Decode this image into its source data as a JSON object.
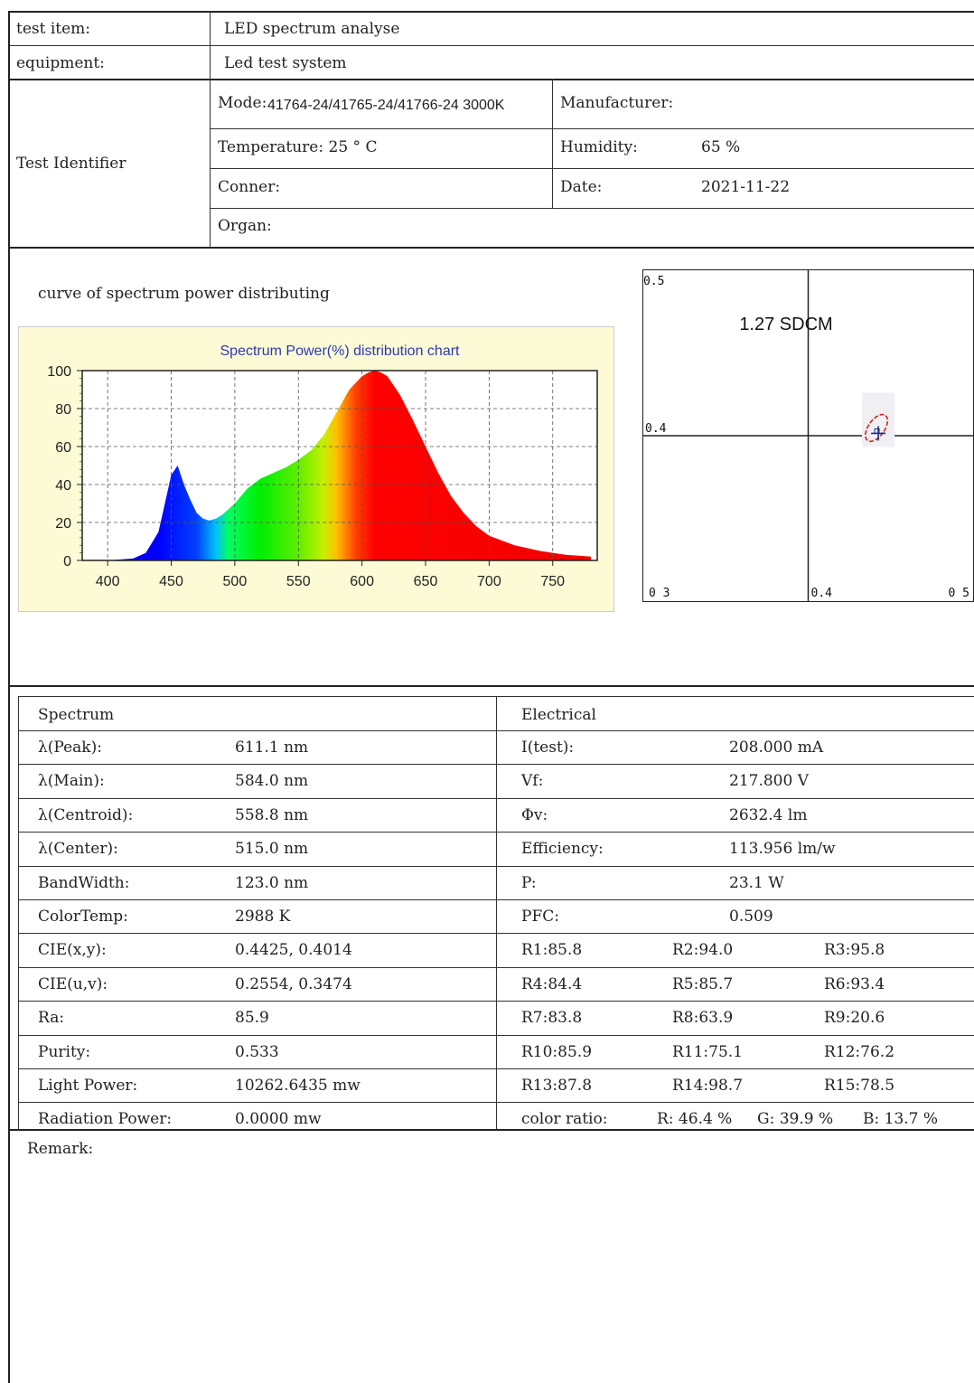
{
  "header": {
    "test_item_label": "test item:",
    "test_item_value": "LED spectrum analyse",
    "equipment_label": "equipment:",
    "equipment_value": "Led test system",
    "identifier_label": "Test Identifier",
    "mode_label": "Mode:",
    "mode_value": "41764-24/41765-24/41766-24 3000K",
    "manufacturer_label": "Manufacturer:",
    "manufacturer_value": "",
    "temperature": "Temperature: 25 ° C",
    "humidity_label": "Humidity:",
    "humidity_value": "65 %",
    "conner_label": "Conner:",
    "date_label": "Date:",
    "date_value": "2021-11-22",
    "organ_label": "Organ:"
  },
  "spectrum_section": {
    "caption": "curve of spectrum power distributing"
  },
  "chart_data": [
    {
      "type": "area",
      "title": "Spectrum Power(%) distribution chart",
      "xlabel": "",
      "ylabel": "",
      "xlim": [
        380,
        785
      ],
      "ylim": [
        0,
        100
      ],
      "xticks": [
        "400",
        "450",
        "500",
        "550",
        "600",
        "650",
        "700",
        "750"
      ],
      "yticks": [
        "0",
        "20",
        "40",
        "60",
        "80",
        "100"
      ],
      "grid": true,
      "x": [
        380,
        400,
        420,
        430,
        440,
        445,
        450,
        455,
        460,
        465,
        470,
        475,
        480,
        485,
        490,
        500,
        510,
        520,
        530,
        540,
        550,
        560,
        570,
        580,
        590,
        600,
        605,
        610,
        615,
        620,
        630,
        640,
        650,
        660,
        670,
        680,
        690,
        700,
        720,
        740,
        760,
        780
      ],
      "y": [
        0,
        0,
        1,
        4,
        15,
        30,
        45,
        50,
        40,
        32,
        25,
        22,
        21,
        22,
        24,
        30,
        38,
        43,
        46,
        49,
        53,
        58,
        66,
        78,
        90,
        97,
        99,
        100,
        99,
        97,
        87,
        74,
        60,
        46,
        34,
        25,
        18,
        13,
        8,
        5,
        3,
        2
      ]
    },
    {
      "type": "scatter",
      "title": "1.27 SDCM",
      "xlim": [
        0.3,
        0.5
      ],
      "ylim": [
        0.3,
        0.5
      ],
      "tick_labels": {
        "top_left": "0.5",
        "left_mid": "0.4",
        "bottom_left": "0 3",
        "bottom_mid": "0.4",
        "bottom_right": "0 5"
      },
      "point": {
        "x": 0.4425,
        "y": 0.4014
      },
      "ellipse_color": "#d22020",
      "marker_color": "#1a2a8a"
    }
  ],
  "spectrum": {
    "heading": "Spectrum",
    "rows": [
      {
        "label": "λ(Peak):",
        "value": "611.1 nm"
      },
      {
        "label": "λ(Main):",
        "value": "584.0 nm"
      },
      {
        "label": "λ(Centroid):",
        "value": "558.8 nm"
      },
      {
        "label": "λ(Center):",
        "value": "515.0 nm"
      },
      {
        "label": "BandWidth:",
        "value": "123.0 nm"
      },
      {
        "label": "ColorTemp:",
        "value": "2988 K"
      },
      {
        "label": "CIE(x,y):",
        "value": "0.4425, 0.4014"
      },
      {
        "label": "CIE(u,v):",
        "value": "0.2554, 0.3474"
      },
      {
        "label": "Ra:",
        "value": "85.9"
      },
      {
        "label": "Purity:",
        "value": "0.533"
      },
      {
        "label": "Light Power:",
        "value": "10262.6435 mw"
      },
      {
        "label": "Radiation Power:",
        "value": "0.0000 mw"
      }
    ]
  },
  "electrical": {
    "heading": "Electrical",
    "rows": [
      {
        "label": "I(test):",
        "value": "208.000 mA"
      },
      {
        "label": "Vf:",
        "value": "217.800 V"
      },
      {
        "label": "Φv:",
        "value": "2632.4 lm"
      },
      {
        "label": "Efficiency:",
        "value": "113.956 lm/w"
      },
      {
        "label": "P:",
        "value": "23.1 W"
      },
      {
        "label": "PFC:",
        "value": "0.509"
      }
    ],
    "r_rows": [
      [
        "R1:85.8",
        "R2:94.0",
        "R3:95.8"
      ],
      [
        "R4:84.4",
        "R5:85.7",
        "R6:93.4"
      ],
      [
        "R7:83.8",
        "R8:63.9",
        "R9:20.6"
      ],
      [
        "R10:85.9",
        "R11:75.1",
        "R12:76.2"
      ],
      [
        "R13:87.8",
        "R14:98.7",
        "R15:78.5"
      ]
    ],
    "color_ratio_label": "color ratio:",
    "color_ratio_r": "R: 46.4 %",
    "color_ratio_g": "G: 39.9 %",
    "color_ratio_b": "B: 13.7 %"
  },
  "remark_label": "Remark:"
}
